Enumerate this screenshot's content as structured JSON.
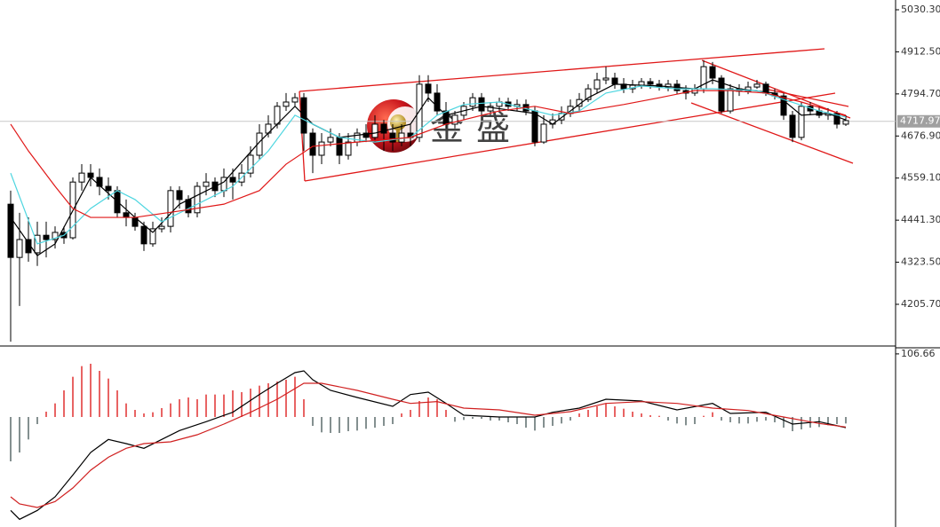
{
  "chart_data": [
    {
      "type": "candlestick",
      "open": [
        4486,
        4337,
        4387,
        4350,
        4399,
        4387,
        4407,
        4392,
        4548,
        4573,
        4561,
        4536,
        4524,
        4462,
        4449,
        4424,
        4375,
        4417,
        4424,
        4524,
        4499,
        4462,
        4536,
        4548,
        4524,
        4561,
        4548,
        4573,
        4623,
        4685,
        4710,
        4760,
        4772,
        4784,
        4685,
        4623,
        4660,
        4673,
        4623,
        4660,
        4685,
        4673,
        4710,
        4685,
        4660,
        4685,
        4673,
        4822,
        4797,
        4747,
        4710,
        4735,
        4760,
        4784,
        4747,
        4760,
        4772,
        4760,
        4765,
        4747,
        4660,
        4710,
        4722,
        4740,
        4760,
        4779,
        4809,
        4834,
        4839,
        4822,
        4809,
        4819,
        4829,
        4822,
        4814,
        4822,
        4804,
        4797,
        4809,
        4871,
        4839,
        4747,
        4809,
        4802,
        4814,
        4822,
        4797,
        4789,
        4735,
        4673,
        4760,
        4747,
        4735,
        4740,
        4710
      ],
      "high": [
        4524,
        4462,
        4449,
        4437,
        4437,
        4424,
        4424,
        4561,
        4598,
        4598,
        4586,
        4561,
        4536,
        4499,
        4462,
        4437,
        4437,
        4449,
        4536,
        4536,
        4511,
        4548,
        4573,
        4561,
        4586,
        4586,
        4598,
        4648,
        4710,
        4735,
        4772,
        4797,
        4797,
        4797,
        4698,
        4685,
        4698,
        4685,
        4685,
        4698,
        4710,
        4735,
        4722,
        4710,
        4710,
        4710,
        4847,
        4847,
        4822,
        4772,
        4747,
        4772,
        4797,
        4797,
        4772,
        4784,
        4784,
        4779,
        4779,
        4760,
        4735,
        4740,
        4760,
        4779,
        4797,
        4822,
        4854,
        4871,
        4854,
        4839,
        4834,
        4839,
        4839,
        4834,
        4834,
        4834,
        4819,
        4822,
        4889,
        4884,
        4847,
        4822,
        4822,
        4829,
        4834,
        4829,
        4809,
        4797,
        4747,
        4772,
        4772,
        4760,
        4755,
        4747,
        4735
      ],
      "low": [
        4101,
        4201,
        4325,
        4313,
        4337,
        4362,
        4375,
        4387,
        4524,
        4536,
        4511,
        4499,
        4449,
        4424,
        4412,
        4355,
        4367,
        4407,
        4407,
        4474,
        4449,
        4449,
        4511,
        4506,
        4506,
        4499,
        4536,
        4561,
        4611,
        4673,
        4698,
        4747,
        4760,
        4635,
        4573,
        4598,
        4648,
        4598,
        4611,
        4648,
        4660,
        4660,
        4635,
        4635,
        4648,
        4648,
        4660,
        4772,
        4735,
        4698,
        4698,
        4722,
        4747,
        4735,
        4735,
        4747,
        4747,
        4747,
        4735,
        4648,
        4655,
        4698,
        4710,
        4730,
        4747,
        4772,
        4797,
        4822,
        4809,
        4797,
        4797,
        4809,
        4809,
        4804,
        4802,
        4794,
        4779,
        4789,
        4797,
        4822,
        4740,
        4740,
        4789,
        4794,
        4809,
        4789,
        4779,
        4722,
        4660,
        4665,
        4735,
        4727,
        4722,
        4698,
        4705
      ],
      "close": [
        4337,
        4387,
        4350,
        4399,
        4387,
        4407,
        4392,
        4548,
        4573,
        4561,
        4536,
        4524,
        4462,
        4449,
        4424,
        4375,
        4417,
        4424,
        4524,
        4499,
        4462,
        4536,
        4548,
        4524,
        4561,
        4548,
        4573,
        4623,
        4685,
        4710,
        4760,
        4772,
        4784,
        4685,
        4623,
        4660,
        4673,
        4623,
        4660,
        4685,
        4673,
        4710,
        4685,
        4660,
        4685,
        4673,
        4822,
        4797,
        4747,
        4710,
        4735,
        4760,
        4784,
        4747,
        4760,
        4772,
        4760,
        4765,
        4747,
        4660,
        4710,
        4722,
        4740,
        4760,
        4779,
        4809,
        4834,
        4839,
        4822,
        4809,
        4819,
        4829,
        4822,
        4814,
        4822,
        4804,
        4797,
        4809,
        4871,
        4839,
        4747,
        4809,
        4802,
        4814,
        4822,
        4797,
        4789,
        4735,
        4673,
        4760,
        4747,
        4735,
        4740,
        4710,
        4720
      ],
      "series": [
        {
          "color": "#000000",
          "x": [
            0,
            3,
            5,
            9,
            14,
            16,
            19,
            24,
            28,
            32,
            34,
            37,
            41,
            45,
            47,
            49,
            53,
            59,
            61,
            65,
            68,
            73,
            77,
            79,
            82,
            86,
            89,
            92,
            94
          ],
          "values": [
            4449,
            4342,
            4375,
            4561,
            4449,
            4407,
            4486,
            4548,
            4660,
            4760,
            4710,
            4673,
            4685,
            4710,
            4784,
            4735,
            4760,
            4740,
            4710,
            4784,
            4822,
            4817,
            4809,
            4834,
            4809,
            4797,
            4735,
            4740,
            4722
          ]
        },
        {
          "color": "#4fd6e0",
          "x": [
            0,
            3,
            6,
            9,
            12,
            14,
            17,
            21,
            25,
            29,
            32,
            37,
            41,
            45,
            48,
            51,
            55,
            61,
            64,
            67,
            71,
            75,
            79,
            84,
            87,
            91,
            94
          ],
          "values": [
            4573,
            4375,
            4399,
            4474,
            4524,
            4499,
            4437,
            4486,
            4536,
            4635,
            4735,
            4673,
            4660,
            4673,
            4735,
            4765,
            4772,
            4735,
            4747,
            4797,
            4817,
            4809,
            4809,
            4804,
            4779,
            4747,
            4730
          ]
        },
        {
          "color": "#e01818",
          "x": [
            0,
            2,
            5,
            7,
            9,
            14,
            19,
            24,
            28,
            31,
            34,
            39,
            45,
            49,
            55,
            59,
            63,
            69,
            73,
            77,
            81,
            85,
            89,
            94
          ],
          "values": [
            4710,
            4635,
            4536,
            4474,
            4449,
            4449,
            4467,
            4486,
            4524,
            4598,
            4648,
            4660,
            4673,
            4710,
            4747,
            4760,
            4740,
            4765,
            4784,
            4804,
            4804,
            4797,
            4772,
            4735
          ]
        }
      ],
      "last_price": 4717.97,
      "ylim": [
        4089,
        5057.6
      ],
      "yticks": [
        {
          "value": 5030.3,
          "label": "5030.30"
        },
        {
          "value": 4912.5,
          "label": "4912.50"
        },
        {
          "value": 4794.7,
          "label": "4794.70"
        },
        {
          "value": 4676.9,
          "label": "4676.90"
        },
        {
          "value": 4559.1,
          "label": "4559.10"
        },
        {
          "value": 4441.3,
          "label": "4441.30"
        },
        {
          "value": 4323.5,
          "label": "4323.50"
        },
        {
          "value": 4205.7,
          "label": "4205.70"
        }
      ]
    },
    {
      "type": "macd",
      "histogram": [
        -75,
        -60,
        -38,
        -12,
        9,
        23,
        45,
        68,
        86,
        90,
        78,
        65,
        45,
        23,
        12,
        6,
        8,
        15,
        23,
        30,
        33,
        30,
        38,
        38,
        38,
        45,
        42,
        48,
        53,
        57,
        60,
        63,
        68,
        30,
        -15,
        -26,
        -27,
        -27,
        -24,
        -23,
        -20,
        -18,
        -15,
        -12,
        6,
        12,
        27,
        33,
        30,
        12,
        -8,
        -5,
        -3,
        -3,
        -6,
        -6,
        -9,
        -12,
        -18,
        -23,
        -18,
        -15,
        -11,
        -6,
        6,
        12,
        18,
        23,
        18,
        14,
        9,
        6,
        3,
        2,
        -6,
        -11,
        -14,
        -12,
        2,
        8,
        -6,
        -9,
        -11,
        -11,
        -8,
        -6,
        -9,
        -18,
        -24,
        -21,
        -18,
        -17,
        -14,
        -12,
        -11
      ],
      "colors": {
        "up": "#e03030",
        "down": "#5a6a6a"
      },
      "series": [
        {
          "color": "#000000",
          "x": [
            0,
            1,
            3,
            5,
            7,
            9,
            11,
            13,
            15,
            17,
            19,
            22,
            25,
            28,
            30,
            32,
            33,
            34,
            36,
            39,
            43,
            45,
            47,
            49,
            51,
            55,
            59,
            61,
            64,
            67,
            71,
            75,
            79,
            81,
            85,
            88,
            91,
            94
          ],
          "values": [
            -158,
            -173,
            -158,
            -135,
            -98,
            -60,
            -38,
            -45,
            -53,
            -38,
            -23,
            -8,
            8,
            38,
            57,
            75,
            78,
            63,
            45,
            33,
            18,
            38,
            42,
            23,
            3,
            0,
            0,
            8,
            15,
            30,
            27,
            12,
            23,
            6,
            8,
            -12,
            -8,
            -18
          ]
        },
        {
          "color": "#d02020",
          "x": [
            0,
            1,
            3,
            5,
            7,
            9,
            11,
            13,
            15,
            18,
            21,
            24,
            27,
            30,
            33,
            35,
            39,
            43,
            45,
            48,
            51,
            55,
            59,
            63,
            67,
            71,
            75,
            79,
            83,
            87,
            91,
            94
          ],
          "values": [
            -135,
            -147,
            -153,
            -143,
            -120,
            -90,
            -68,
            -53,
            -45,
            -42,
            -30,
            -12,
            8,
            30,
            57,
            57,
            45,
            30,
            23,
            26,
            15,
            12,
            3,
            9,
            23,
            26,
            23,
            15,
            11,
            0,
            -11,
            -17
          ]
        }
      ],
      "ylim": [
        -186,
        117
      ],
      "yticks": [
        106.66
      ]
    }
  ],
  "watermark": "金盛"
}
